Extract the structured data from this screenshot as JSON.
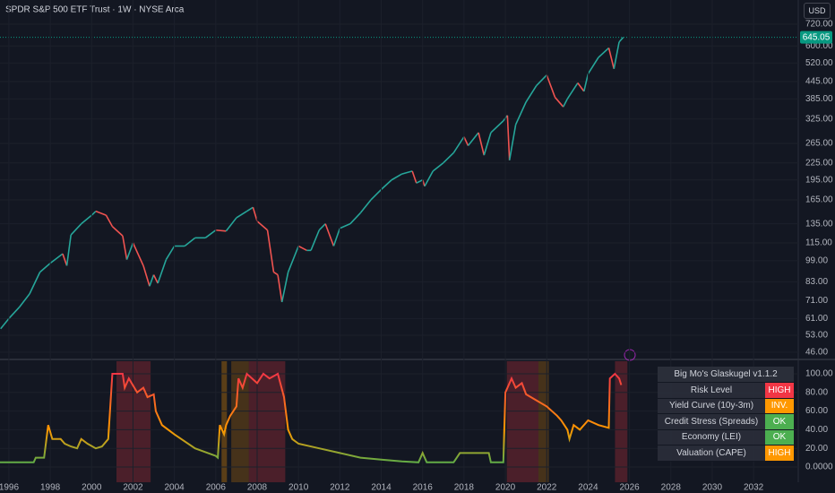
{
  "header": {
    "title": "SPDR S&P 500 ETF Trust · 1W · NYSE Arca",
    "currency": "USD"
  },
  "chart_data": [
    {
      "type": "line",
      "log_scale": true,
      "grid": true,
      "up_color": "#26a69a",
      "down_color": "#ef5350",
      "last_price_color": "#089981",
      "last_price": 645.05,
      "xlim": [
        1995.57,
        2034.16
      ],
      "ylim": [
        43.6,
        882
      ],
      "yticks": [
        {
          "value": 720,
          "label": "720.00"
        },
        {
          "value": 600,
          "label": "600.00"
        },
        {
          "value": 520,
          "label": "520.00"
        },
        {
          "value": 445,
          "label": "445.00"
        },
        {
          "value": 385,
          "label": "385.00"
        },
        {
          "value": 325,
          "label": "325.00"
        },
        {
          "value": 265,
          "label": "265.00"
        },
        {
          "value": 225,
          "label": "225.00"
        },
        {
          "value": 195,
          "label": "195.00"
        },
        {
          "value": 165,
          "label": "165.00"
        },
        {
          "value": 135,
          "label": "135.00"
        },
        {
          "value": 115,
          "label": "115.00"
        },
        {
          "value": 99,
          "label": "99.00"
        },
        {
          "value": 83,
          "label": "83.00"
        },
        {
          "value": 71,
          "label": "71.00"
        },
        {
          "value": 61,
          "label": "61.00"
        },
        {
          "value": 53,
          "label": "53.00"
        },
        {
          "value": 46,
          "label": "46.00"
        }
      ],
      "x": [
        1995.6,
        1996.0,
        1996.5,
        1997.0,
        1997.5,
        1998.0,
        1998.6,
        1998.8,
        1999.0,
        1999.5,
        2000.0,
        2000.2,
        2000.7,
        2001.0,
        2001.5,
        2001.7,
        2002.0,
        2002.5,
        2002.8,
        2003.0,
        2003.2,
        2003.6,
        2004.0,
        2004.5,
        2005.0,
        2005.5,
        2006.0,
        2006.5,
        2007.0,
        2007.5,
        2007.8,
        2008.0,
        2008.5,
        2008.8,
        2009.0,
        2009.2,
        2009.5,
        2010.0,
        2010.4,
        2010.6,
        2011.0,
        2011.3,
        2011.7,
        2012.0,
        2012.5,
        2013.0,
        2013.5,
        2014.0,
        2014.5,
        2015.0,
        2015.5,
        2015.7,
        2016.0,
        2016.1,
        2016.5,
        2017.0,
        2017.5,
        2018.0,
        2018.2,
        2018.7,
        2018.97,
        2019.3,
        2019.9,
        2020.1,
        2020.2,
        2020.5,
        2021.0,
        2021.5,
        2022.0,
        2022.4,
        2022.8,
        2023.0,
        2023.5,
        2023.8,
        2024.0,
        2024.5,
        2025.0,
        2025.25,
        2025.5,
        2025.7
      ],
      "values": [
        56,
        61,
        67,
        75,
        90,
        97,
        105,
        95,
        123,
        135,
        145,
        150,
        145,
        132,
        122,
        100,
        115,
        95,
        80,
        88,
        82,
        100,
        112,
        112,
        120,
        120,
        128,
        127,
        142,
        150,
        155,
        138,
        128,
        90,
        88,
        70,
        90,
        112,
        108,
        108,
        128,
        135,
        112,
        130,
        135,
        148,
        165,
        180,
        195,
        205,
        210,
        190,
        195,
        185,
        210,
        225,
        245,
        280,
        260,
        290,
        240,
        290,
        320,
        335,
        230,
        310,
        375,
        430,
        470,
        390,
        360,
        385,
        440,
        410,
        475,
        545,
        590,
        495,
        620,
        645.05
      ]
    },
    {
      "type": "line",
      "grid": true,
      "xlim": [
        1995.57,
        2034.16
      ],
      "ylim": [
        -16.3,
        114.4
      ],
      "xticks": [
        1996,
        1998,
        2000,
        2002,
        2004,
        2006,
        2008,
        2010,
        2012,
        2014,
        2016,
        2018,
        2020,
        2022,
        2024,
        2026,
        2028,
        2030,
        2032
      ],
      "yticks": [
        {
          "value": 100,
          "label": "100.00"
        },
        {
          "value": 80,
          "label": "80.00"
        },
        {
          "value": 60,
          "label": "60.00"
        },
        {
          "value": 40,
          "label": "40.00"
        },
        {
          "value": 20,
          "label": "20.00"
        },
        {
          "value": 0,
          "label": "0.0000"
        }
      ],
      "gradient": [
        {
          "value": 0,
          "color": "#4caf50"
        },
        {
          "value": 40,
          "color": "#ff9800"
        },
        {
          "value": 100,
          "color": "#f23645"
        }
      ],
      "zones": [
        {
          "start": 2001.2,
          "end": 2002.85,
          "color": "rgba(242,54,69,0.25)"
        },
        {
          "start": 2006.28,
          "end": 2006.54,
          "color": "rgba(255,152,0,0.3)"
        },
        {
          "start": 2006.75,
          "end": 2007.6,
          "color": "rgba(255,152,0,0.22)"
        },
        {
          "start": 2007.6,
          "end": 2009.36,
          "color": "rgba(242,54,69,0.25)"
        },
        {
          "start": 2020.07,
          "end": 2021.6,
          "color": "rgba(242,54,69,0.25)"
        },
        {
          "start": 2021.6,
          "end": 2022.1,
          "color": "rgba(255,152,0,0.22)"
        },
        {
          "start": 2025.3,
          "end": 2025.9,
          "color": "rgba(242,54,69,0.25)"
        }
      ],
      "x": [
        1995.57,
        1997.2,
        1997.3,
        1997.7,
        1997.9,
        1998.1,
        1998.5,
        1998.7,
        1999.0,
        1999.3,
        1999.5,
        1999.8,
        2000.2,
        2000.5,
        2000.8,
        2001.0,
        2001.5,
        2001.6,
        2001.8,
        2002.2,
        2002.5,
        2002.7,
        2003.0,
        2003.1,
        2003.4,
        2004.0,
        2005.0,
        2006.0,
        2006.1,
        2006.2,
        2006.4,
        2006.5,
        2006.7,
        2007.0,
        2007.1,
        2007.3,
        2007.5,
        2008.0,
        2008.3,
        2008.6,
        2009.0,
        2009.3,
        2009.5,
        2009.7,
        2010.0,
        2011.0,
        2012.0,
        2013.0,
        2014.0,
        2015.0,
        2015.8,
        2016.0,
        2016.2,
        2017.0,
        2017.5,
        2017.8,
        2018.5,
        2019.2,
        2019.3,
        2019.9,
        2020.0,
        2020.3,
        2020.5,
        2020.8,
        2021.0,
        2022.0,
        2022.5,
        2022.7,
        2023.0,
        2023.1,
        2023.3,
        2023.6,
        2024.0,
        2024.5,
        2025.0,
        2025.05,
        2025.3,
        2025.5,
        2025.6
      ],
      "values": [
        5,
        5,
        10,
        10,
        45,
        30,
        30,
        25,
        22,
        20,
        30,
        25,
        20,
        22,
        30,
        100,
        100,
        85,
        95,
        80,
        85,
        75,
        78,
        60,
        45,
        35,
        20,
        12,
        10,
        45,
        35,
        45,
        55,
        65,
        95,
        85,
        100,
        90,
        100,
        95,
        100,
        75,
        40,
        30,
        25,
        20,
        15,
        10,
        8,
        6,
        5,
        15,
        5,
        5,
        5,
        15,
        15,
        15,
        5,
        5,
        80,
        95,
        85,
        90,
        78,
        65,
        55,
        50,
        40,
        30,
        45,
        40,
        50,
        45,
        42,
        95,
        100,
        95,
        88
      ]
    }
  ],
  "table": {
    "title": "Big Mo's Glaskugel v1.1.2",
    "rows": [
      {
        "label": "Risk Level",
        "status": "HIGH",
        "color": "#f23645"
      },
      {
        "label": "Yield Curve (10y-3m)",
        "status": "INV.",
        "color": "#ff9800"
      },
      {
        "label": "Credit Stress (Spreads)",
        "status": "OK",
        "color": "#4caf50"
      },
      {
        "label": "Economy (LEI)",
        "status": "OK",
        "color": "#4caf50"
      },
      {
        "label": "Valuation (CAPE)",
        "status": "HIGH",
        "color": "#ff9800"
      }
    ]
  }
}
